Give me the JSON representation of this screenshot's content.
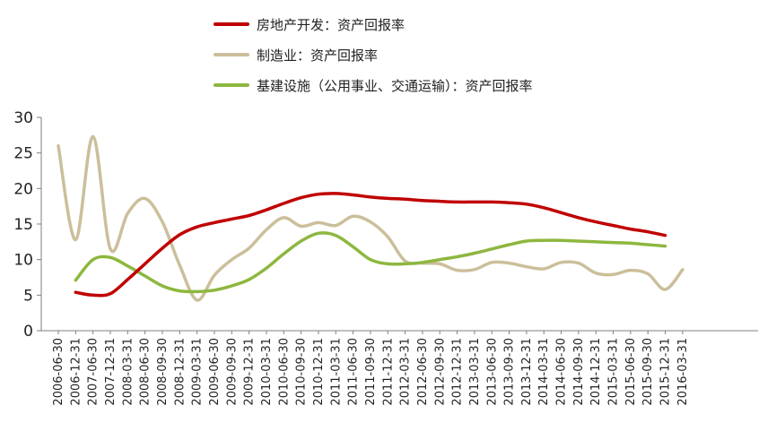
{
  "chart_data": {
    "type": "line",
    "title": "",
    "xlabel": "",
    "ylabel": "",
    "ylim": [
      0,
      30
    ],
    "yticks": [
      0,
      5,
      10,
      15,
      20,
      25,
      30
    ],
    "grid": false,
    "legend_position": "top",
    "categories": [
      "2006-06-30",
      "2006-12-31",
      "2007-06-30",
      "2007-12-31",
      "2008-03-31",
      "2008-06-30",
      "2008-09-30",
      "2008-12-31",
      "2009-03-31",
      "2009-06-30",
      "2009-09-30",
      "2009-12-31",
      "2010-03-31",
      "2010-06-30",
      "2010-09-30",
      "2010-12-31",
      "2011-03-31",
      "2011-06-30",
      "2011-09-30",
      "2011-12-31",
      "2012-03-31",
      "2012-06-30",
      "2012-09-30",
      "2012-12-31",
      "2013-03-31",
      "2013-06-30",
      "2013-09-30",
      "2013-12-31",
      "2014-03-31",
      "2014-06-30",
      "2014-09-30",
      "2014-12-31",
      "2015-03-31",
      "2015-06-30",
      "2015-09-30",
      "2015-12-31",
      "2016-03-31"
    ],
    "series": [
      {
        "name": "房地产开发：资产回报率",
        "color": "#c00000",
        "values": [
          null,
          5.4,
          5.0,
          5.2,
          7.2,
          9.4,
          11.6,
          13.5,
          14.6,
          15.2,
          15.7,
          16.2,
          17.0,
          17.9,
          18.7,
          19.2,
          19.3,
          19.1,
          18.8,
          18.6,
          18.5,
          18.3,
          18.2,
          18.1,
          18.1,
          18.1,
          18.0,
          17.8,
          17.3,
          16.6,
          15.9,
          15.3,
          14.8,
          14.3,
          13.9,
          13.4,
          null
        ]
      },
      {
        "name": "制造业：资产回报率",
        "color": "#cbbf9b",
        "values": [
          26.0,
          12.8,
          27.3,
          11.5,
          16.5,
          18.6,
          15.3,
          9.2,
          4.3,
          7.8,
          10.0,
          11.6,
          14.2,
          15.9,
          14.7,
          15.2,
          14.8,
          16.1,
          15.3,
          13.2,
          9.8,
          9.5,
          9.4,
          8.5,
          8.6,
          9.6,
          9.5,
          9.0,
          8.7,
          9.6,
          9.5,
          8.1,
          7.9,
          8.5,
          8.0,
          5.8,
          8.6
        ]
      },
      {
        "name": "基建设施（公用事业、交通运输）：资产回报率",
        "color": "#8db73f",
        "values": [
          null,
          7.1,
          10.0,
          10.3,
          9.1,
          7.7,
          6.3,
          5.6,
          5.5,
          5.7,
          6.3,
          7.2,
          8.8,
          10.8,
          12.6,
          13.7,
          13.4,
          11.8,
          10.0,
          9.4,
          9.4,
          9.6,
          10.0,
          10.4,
          10.9,
          11.5,
          12.1,
          12.6,
          12.7,
          12.7,
          12.6,
          12.5,
          12.4,
          12.3,
          12.1,
          11.9,
          null
        ]
      }
    ]
  }
}
